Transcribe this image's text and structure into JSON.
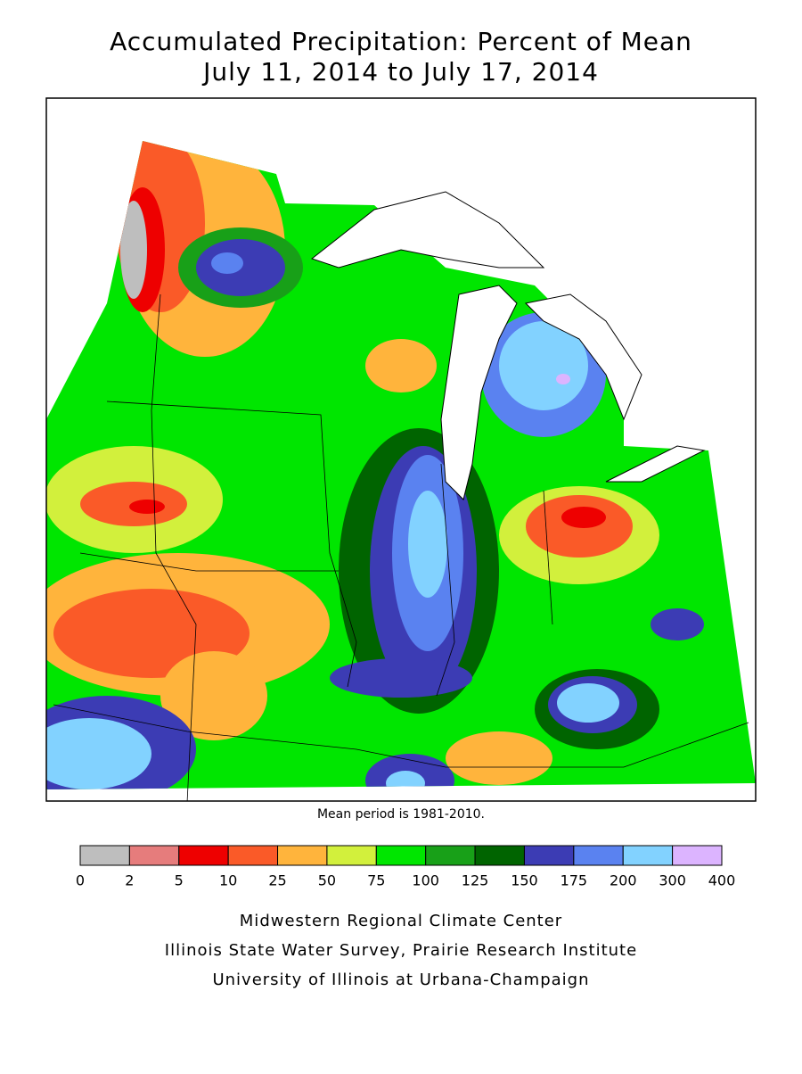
{
  "header": {
    "title": "Accumulated Precipitation: Percent of Mean",
    "subtitle": "July 11, 2014 to July 17, 2014"
  },
  "note": "Mean period is 1981-2010.",
  "legend": {
    "breaks": [
      0,
      2,
      5,
      10,
      25,
      50,
      75,
      100,
      125,
      150,
      175,
      200,
      300,
      400
    ],
    "colors": [
      "#bebebe",
      "#e67c7c",
      "#ee0000",
      "#fa5a28",
      "#ffb43c",
      "#d2f03c",
      "#00e600",
      "#18a018",
      "#006400",
      "#3c3cb4",
      "#5a82f0",
      "#82d2ff",
      "#dcb4ff"
    ]
  },
  "credits": [
    "Midwestern Regional Climate Center",
    "Illinois State Water Survey, Prairie Research Institute",
    "University of Illinois at Urbana-Champaign"
  ]
}
